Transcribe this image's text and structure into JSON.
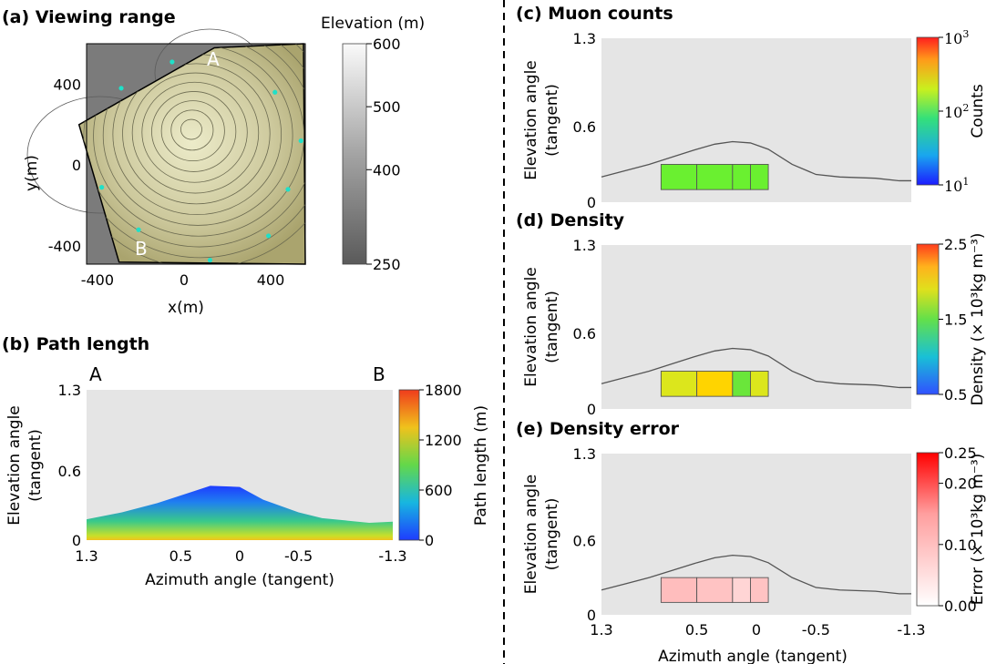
{
  "chart_data": [
    {
      "id": "a",
      "type": "heatmap",
      "title": "(a) Viewing range",
      "xlabel": "x(m)",
      "ylabel": "y(m)",
      "xlim": [
        -450,
        560
      ],
      "ylim": [
        -490,
        600
      ],
      "xticks": [
        "-400",
        "0",
        "400"
      ],
      "yticks": [
        "400",
        "0",
        "-400"
      ],
      "colorbar": {
        "label": "Elevation (m)",
        "ticks": [
          "600",
          "500",
          "400",
          "250"
        ],
        "range": [
          250,
          600
        ]
      },
      "annotations": [
        "A",
        "B"
      ],
      "view_boundary": [
        [
          140,
          580
        ],
        [
          -485,
          200
        ],
        [
          -300,
          -480
        ]
      ],
      "detector_points": [
        [
          -290,
          380
        ],
        [
          -55,
          510
        ],
        [
          420,
          360
        ],
        [
          540,
          120
        ],
        [
          480,
          -120
        ],
        [
          390,
          -350
        ],
        [
          120,
          -470
        ],
        [
          -210,
          -320
        ],
        [
          -380,
          -110
        ]
      ]
    },
    {
      "id": "b",
      "type": "area",
      "title": "(b) Path length",
      "xlabel": "Azimuth angle (tangent)",
      "ylabel": "Elevation angle\n(tangent)",
      "xlim": [
        1.3,
        -1.3
      ],
      "ylim": [
        0,
        1.3
      ],
      "xticks": [
        "1.3",
        "0.5",
        "0",
        "-0.5",
        "-1.3"
      ],
      "yticks": [
        "1.3",
        "0.6",
        "0"
      ],
      "annotations": [
        "A",
        "B"
      ],
      "colorbar": {
        "label": "Path length (m)",
        "ticks": [
          "1800",
          "1200",
          "600",
          "0"
        ],
        "range": [
          0,
          1800
        ]
      },
      "outline": {
        "x": [
          1.3,
          1.0,
          0.7,
          0.4,
          0.25,
          0.0,
          -0.2,
          -0.5,
          -0.7,
          -0.9,
          -1.1,
          -1.3
        ],
        "y": [
          0.18,
          0.24,
          0.32,
          0.42,
          0.47,
          0.46,
          0.35,
          0.24,
          0.19,
          0.17,
          0.15,
          0.16
        ]
      }
    },
    {
      "id": "c",
      "type": "heatmap",
      "title": "(c) Muon counts",
      "xlabel": "",
      "ylabel": "Elevation angle\n(tangent)",
      "xlim": [
        1.3,
        -1.3
      ],
      "ylim": [
        0,
        1.3
      ],
      "xticks": [],
      "yticks": [
        "1.3",
        "0.6",
        "0"
      ],
      "colorbar": {
        "label": "Counts",
        "scale": "log",
        "ticks": [
          "10",
          "10",
          "10"
        ],
        "tick_exponents": [
          "3",
          "2",
          "1"
        ],
        "range": [
          10,
          1000
        ]
      },
      "cells": [
        {
          "x": [
            0.8,
            0.5
          ],
          "y": [
            0.1,
            0.3
          ],
          "value": 100
        },
        {
          "x": [
            0.5,
            0.2
          ],
          "y": [
            0.1,
            0.3
          ],
          "value": 100
        },
        {
          "x": [
            0.2,
            0.05
          ],
          "y": [
            0.1,
            0.3
          ],
          "value": 100
        },
        {
          "x": [
            0.05,
            -0.1
          ],
          "y": [
            0.1,
            0.3
          ],
          "value": 100
        }
      ]
    },
    {
      "id": "d",
      "type": "heatmap",
      "title": "(d) Density",
      "xlabel": "",
      "ylabel": "Elevation angle\n(tangent)",
      "xlim": [
        1.3,
        -1.3
      ],
      "ylim": [
        0,
        1.3
      ],
      "xticks": [],
      "yticks": [
        "1.3",
        "0.6",
        "0"
      ],
      "colorbar": {
        "label": "Density (× 10³kg m⁻³)",
        "ticks": [
          "2.5",
          "1.5",
          "0.5"
        ],
        "range": [
          0.5,
          2.5
        ]
      },
      "cells": [
        {
          "x": [
            0.8,
            0.5
          ],
          "y": [
            0.1,
            0.3
          ],
          "value": 2.0
        },
        {
          "x": [
            0.5,
            0.2
          ],
          "y": [
            0.1,
            0.3
          ],
          "value": 2.1
        },
        {
          "x": [
            0.2,
            0.05
          ],
          "y": [
            0.1,
            0.3
          ],
          "value": 1.6
        },
        {
          "x": [
            0.05,
            -0.1
          ],
          "y": [
            0.1,
            0.3
          ],
          "value": 1.9
        }
      ]
    },
    {
      "id": "e",
      "type": "heatmap",
      "title": "(e) Density error",
      "xlabel": "Azimuth angle (tangent)",
      "ylabel": "Elevation angle\n(tangent)",
      "xlim": [
        1.3,
        -1.3
      ],
      "ylim": [
        0,
        1.3
      ],
      "xticks": [
        "1.3",
        "0.5",
        "0",
        "-0.5",
        "-1.3"
      ],
      "yticks": [
        "1.3",
        "0.6",
        "0"
      ],
      "colorbar": {
        "label": "Error (× 10³kg m⁻³)",
        "ticks": [
          "0.25",
          "0.20",
          "0.10",
          "0.00"
        ],
        "range": [
          0,
          0.25
        ]
      },
      "cells": [
        {
          "x": [
            0.8,
            0.5
          ],
          "y": [
            0.1,
            0.3
          ],
          "value": 0.11
        },
        {
          "x": [
            0.5,
            0.2
          ],
          "y": [
            0.1,
            0.3
          ],
          "value": 0.1
        },
        {
          "x": [
            0.2,
            0.05
          ],
          "y": [
            0.1,
            0.3
          ],
          "value": 0.07
        },
        {
          "x": [
            0.05,
            -0.1
          ],
          "y": [
            0.1,
            0.3
          ],
          "value": 0.1
        }
      ]
    }
  ],
  "profile_outline": {
    "x": [
      1.3,
      1.1,
      0.9,
      0.7,
      0.5,
      0.35,
      0.2,
      0.05,
      -0.1,
      -0.3,
      -0.5,
      -0.7,
      -1.0,
      -1.2,
      -1.3
    ],
    "y": [
      0.2,
      0.25,
      0.3,
      0.36,
      0.42,
      0.46,
      0.48,
      0.47,
      0.42,
      0.3,
      0.22,
      0.2,
      0.19,
      0.17,
      0.17
    ]
  },
  "colors": {
    "panel_background": "#e5e5e5",
    "mountain_fill": "#c9c59a",
    "outline": "#555555",
    "detector_point": "#20e0c8"
  }
}
